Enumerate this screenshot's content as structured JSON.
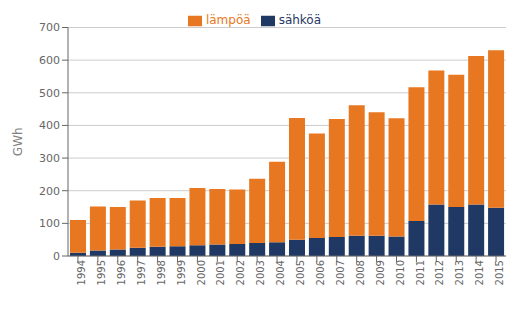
{
  "chart_data": {
    "type": "bar",
    "stacked": true,
    "categories": [
      "1994",
      "1995",
      "1996",
      "1997",
      "1998",
      "1999",
      "2000",
      "2001",
      "2002",
      "2003",
      "2004",
      "2005",
      "2006",
      "2007",
      "2008",
      "2009",
      "2010",
      "2011",
      "2012",
      "2013",
      "2014",
      "2015"
    ],
    "series": [
      {
        "name": "sähköä",
        "color": "#1F3864",
        "values": [
          10,
          17,
          20,
          25,
          28,
          30,
          33,
          35,
          37,
          40,
          42,
          50,
          55,
          58,
          62,
          62,
          60,
          107,
          158,
          150,
          158,
          148
        ]
      },
      {
        "name": "lämpöä",
        "color": "#E87722",
        "values": [
          100,
          135,
          130,
          145,
          150,
          148,
          175,
          170,
          167,
          197,
          247,
          373,
          320,
          362,
          400,
          378,
          362,
          410,
          410,
          405,
          455,
          482
        ]
      }
    ],
    "ylabel": "GWh",
    "ylim": [
      0,
      700
    ],
    "yticks": [
      0,
      100,
      200,
      300,
      400,
      500,
      600,
      700
    ],
    "grid": true,
    "legend": "top"
  }
}
